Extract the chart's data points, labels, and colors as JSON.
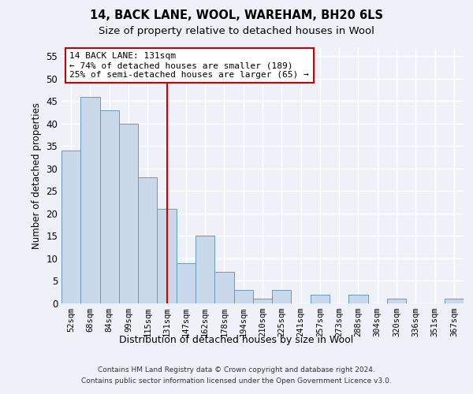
{
  "title1": "14, BACK LANE, WOOL, WAREHAM, BH20 6LS",
  "title2": "Size of property relative to detached houses in Wool",
  "xlabel": "Distribution of detached houses by size in Wool",
  "ylabel": "Number of detached properties",
  "categories": [
    "52sqm",
    "68sqm",
    "84sqm",
    "99sqm",
    "115sqm",
    "131sqm",
    "147sqm",
    "162sqm",
    "178sqm",
    "194sqm",
    "210sqm",
    "225sqm",
    "241sqm",
    "257sqm",
    "273sqm",
    "288sqm",
    "304sqm",
    "320sqm",
    "336sqm",
    "351sqm",
    "367sqm"
  ],
  "bar_values": [
    34,
    46,
    43,
    40,
    28,
    21,
    9,
    15,
    7,
    3,
    1,
    3,
    0,
    2,
    0,
    2,
    0,
    1,
    0,
    0,
    1
  ],
  "bar_color": "#c9d9ea",
  "bar_edge_color": "#6699bb",
  "vline_x": 5,
  "vline_color": "#cc0000",
  "annotation_text": "14 BACK LANE: 131sqm\n← 74% of detached houses are smaller (189)\n25% of semi-detached houses are larger (65) →",
  "annotation_box_color": "#cc0000",
  "ylim": [
    0,
    57
  ],
  "yticks": [
    0,
    5,
    10,
    15,
    20,
    25,
    30,
    35,
    40,
    45,
    50,
    55
  ],
  "footer1": "Contains HM Land Registry data © Crown copyright and database right 2024.",
  "footer2": "Contains public sector information licensed under the Open Government Licence v3.0.",
  "background_color": "#eef2f8",
  "grid_color": "#ffffff"
}
